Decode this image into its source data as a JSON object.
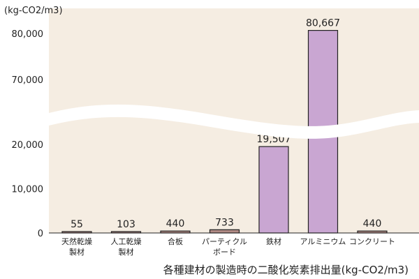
{
  "chart_data": {
    "type": "bar",
    "unit_label": "(kg-CO2/m3)",
    "caption": "各種建材の製造時の二酸化炭素排出量(kg-CO2/m3)",
    "categories": [
      [
        "天然乾燥",
        "製材"
      ],
      [
        "人工乾燥",
        "製材"
      ],
      [
        "合板"
      ],
      [
        "パーティクル",
        "ボード"
      ],
      [
        "鉄材"
      ],
      [
        "アルミニウム"
      ],
      [
        "コンクリート"
      ]
    ],
    "values": [
      55,
      103,
      440,
      733,
      19507,
      80667,
      440
    ],
    "value_labels": [
      "55",
      "103",
      "440",
      "733",
      "19,507",
      "80,667",
      "440"
    ],
    "y_ticks_lower": [
      {
        "value": 0,
        "label": "0"
      },
      {
        "value": 10000,
        "label": "10,000"
      },
      {
        "value": 20000,
        "label": "20,000"
      }
    ],
    "y_ticks_upper": [
      {
        "value": 70000,
        "label": "70,000"
      },
      {
        "value": 80000,
        "label": "80,000"
      }
    ],
    "axis_break": true,
    "grid": false,
    "colors": {
      "background": "#f5ede2",
      "low_bars": "#b08a85",
      "high_bars": "#c9a6d2",
      "bar_edge": "#222222"
    }
  }
}
